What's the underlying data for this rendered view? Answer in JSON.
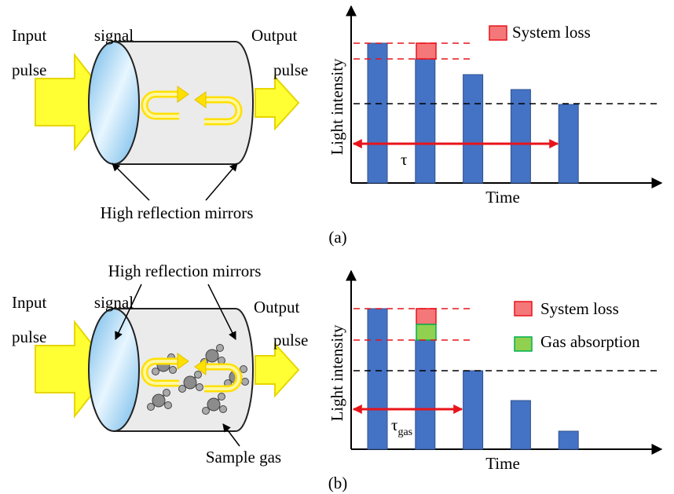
{
  "panels": [
    {
      "input_label": [
        "Input",
        "pulse"
      ],
      "signal_label": "signal",
      "output_label": [
        "Output",
        "pulse"
      ],
      "mirrors_label": "High reflection mirrors",
      "y_label": "Light intensity",
      "x_label": "Time",
      "legend": [
        "System loss"
      ],
      "tau": {
        "symbol": "τ"
      },
      "caption": "(a)"
    },
    {
      "input_label": [
        "Input",
        "pulse"
      ],
      "signal_label": "signal",
      "output_label": [
        "Output",
        "pulse"
      ],
      "mirrors_label": "High reflection mirrors",
      "y_label": "Light intensity",
      "x_label": "Time",
      "legend": [
        "System loss",
        "Gas absorption"
      ],
      "tau": {
        "symbol": "τ",
        "subscript": "gas"
      },
      "sample_label": "Sample gas",
      "caption": "(b)"
    }
  ]
}
